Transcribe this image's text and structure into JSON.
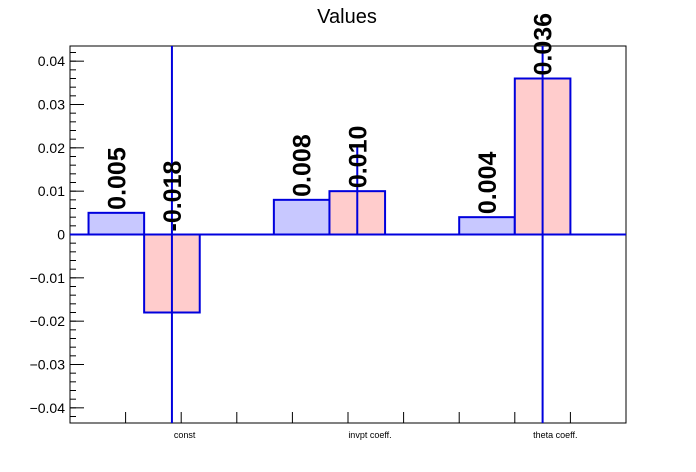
{
  "chart_data": {
    "type": "bar",
    "title": "Values",
    "categories": [
      "const",
      "invpt coeff.",
      "theta coeff."
    ],
    "series": [
      {
        "values": [
          0.005,
          0.008,
          0.004
        ],
        "labels": [
          "0.005",
          "0.008",
          "0.004"
        ],
        "color": "#c8c8ff"
      },
      {
        "values": [
          -0.018,
          0.01,
          0.036
        ],
        "labels": [
          "-0.018",
          "0.010",
          "0.036"
        ],
        "color": "#ffcccc"
      }
    ],
    "error_bars": [
      [
        null,
        null,
        null
      ],
      [
        [
          -0.0435,
          0.0435
        ],
        [
          0.0,
          0.0205
        ],
        [
          -0.0435,
          0.0435
        ]
      ]
    ],
    "ylim": [
      -0.0435,
      0.0435
    ],
    "yticks": [
      -0.04,
      -0.03,
      -0.02,
      -0.01,
      0,
      0.01,
      0.02,
      0.03,
      0.04
    ],
    "ytick_labels": [
      "−0.04",
      "−0.03",
      "−0.02",
      "−0.01",
      "0",
      "0.01",
      "0.02",
      "0.03",
      "0.04"
    ],
    "xlabel": "",
    "ylabel": "",
    "grid": false,
    "legend": "none",
    "outline_color": "#0000dd"
  }
}
